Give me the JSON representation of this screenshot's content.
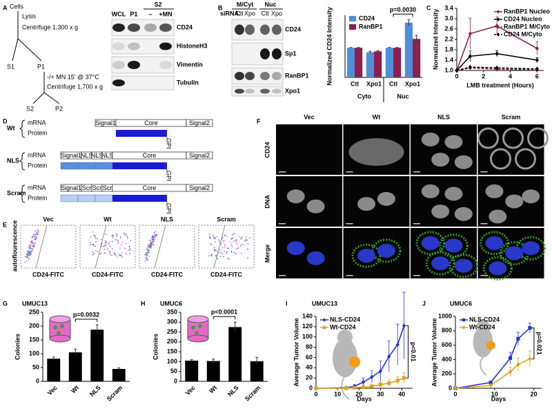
{
  "panel_labels": [
    "A",
    "B",
    "C",
    "D",
    "E",
    "F",
    "G",
    "H",
    "I",
    "J"
  ],
  "fractionation": {
    "nodes": [
      "Cells",
      "S1",
      "P1",
      "S2",
      "P2"
    ],
    "steps": [
      "Lysis",
      "Centrifuge 1,300 x g",
      "-/+ MN 15' @ 37°C",
      "Centrifuge 1,700 x g"
    ]
  },
  "blot_a": {
    "group": "S2",
    "lanes": [
      "WCL",
      "P1",
      "–",
      "+MN"
    ],
    "rows": [
      "CD24",
      "HistoneH3",
      "Vimentin",
      "Tubulin"
    ]
  },
  "blot_b": {
    "groups": [
      "M/Cyt",
      "Nuc"
    ],
    "sirna": "siRNA:",
    "lanes": [
      "Ctl",
      "Xpo",
      "Ctl",
      "Xpo"
    ],
    "rows": [
      "CD24",
      "Sp1",
      "RanBP1",
      "Xpo1"
    ]
  },
  "constructs": {
    "anchor": "GPI",
    "rows": [
      {
        "name": "Wt",
        "mrna": "mRNA",
        "protein": "Protein",
        "segments": [
          "Signal1",
          "Core",
          "Signal2"
        ]
      },
      {
        "name": "NLS",
        "mrna": "mRNA",
        "protein": "Protein",
        "segments": [
          "Signal1",
          "NLS",
          "NLS",
          "NLS",
          "Core",
          "Signal2"
        ]
      },
      {
        "name": "Scram",
        "mrna": "mRNA",
        "protein": "Protein",
        "segments": [
          "Signal1",
          "Scr",
          "Scr",
          "Scr",
          "Core",
          "Signal2"
        ]
      }
    ]
  },
  "flow": {
    "titles": [
      "Vec",
      "Wt",
      "NLS",
      "Scram"
    ],
    "y_label": "autoflourescence",
    "x_label": "CD24-FITC"
  },
  "imaging": {
    "columns": [
      "Vec",
      "Wt",
      "NLS",
      "Scram"
    ],
    "rows": [
      "CD24",
      "DNA",
      "Merge"
    ]
  },
  "chart_data": [
    {
      "type": "bar",
      "y_label": "Normalized CD24 Intensity",
      "categories": [
        "Ctl",
        "Xpo1",
        "Ctl",
        "Xpo1"
      ],
      "groups": [
        "Cyto",
        "Nuc"
      ],
      "series": [
        {
          "name": "CD24",
          "color": "#4f8fd6",
          "values": [
            1,
            0.85,
            1,
            1.85
          ],
          "errors": [
            0.01,
            0.03,
            0.01,
            0.1
          ]
        },
        {
          "name": "RanBP1",
          "color": "#8e1f4f",
          "values": [
            1,
            0.88,
            1,
            1.3
          ],
          "errors": [
            0.01,
            0.02,
            0.01,
            0.12
          ]
        }
      ],
      "ylim": [
        0,
        2.1
      ],
      "legend": "upper left",
      "annotation": "p=0.0030"
    },
    {
      "type": "line",
      "y_label": "Normalized Intensity",
      "x_label": "LMB treatment (Hours)",
      "x": [
        0,
        1,
        3,
        6
      ],
      "xlim": [
        0,
        6.5
      ],
      "xticks": [
        0,
        2,
        4,
        6
      ],
      "ylim": [
        1,
        3.4
      ],
      "yticks": [
        {
          "value": 1,
          "label": "1.0"
        },
        1.4,
        1.8,
        2.2,
        2.6,
        {
          "value": 3,
          "label": "3.0"
        },
        3.4
      ],
      "legend": "upper right",
      "series": [
        {
          "name": "RanBP1 Nucleo",
          "color": "#8e1f4f",
          "marker": "diamond",
          "values": [
            1,
            2.42,
            2.72,
            1.85
          ],
          "errors": [
            0,
            0.6,
            0.35,
            0.25
          ]
        },
        {
          "name": "CD24 Nucleo",
          "color": "#000000",
          "marker": "diamond",
          "values": [
            1,
            1.55,
            1.65,
            1.4
          ],
          "errors": [
            0,
            0.2,
            0.12,
            0.1
          ]
        },
        {
          "name": "RanBP1 M/Cyto",
          "color": "#8e1f4f",
          "marker": "diamond",
          "dash": true,
          "values": [
            1,
            1.1,
            1.05,
            1.02
          ]
        },
        {
          "name": "CD24 M/Cyto",
          "color": "#000000",
          "marker": "diamond",
          "dash": true,
          "values": [
            1,
            1.13,
            1.1,
            1.06
          ]
        }
      ]
    },
    {
      "type": "bar",
      "title": "UMUC13",
      "y_label": "Colonies",
      "categories": [
        "Vec",
        "Wt",
        "NLS",
        "Scram"
      ],
      "values": [
        82,
        105,
        187,
        45
      ],
      "errors": [
        6,
        12,
        18,
        4
      ],
      "color": "#000000",
      "ylim": [
        0,
        250
      ],
      "yticks": [
        0,
        50,
        100,
        150,
        200,
        250
      ],
      "annotation": "p=0.0032"
    },
    {
      "type": "bar",
      "title": "UMUC6",
      "y_label": "Colonies",
      "categories": [
        "Vec",
        "Wt",
        "NLS",
        "Scram"
      ],
      "values": [
        105,
        103,
        275,
        102
      ],
      "errors": [
        5,
        10,
        25,
        20
      ],
      "color": "#000000",
      "ylim": [
        0,
        350
      ],
      "yticks": [
        0,
        50,
        100,
        150,
        200,
        250,
        300,
        350
      ],
      "annotation": "p<0.0001"
    },
    {
      "type": "line",
      "title": "UMUC13",
      "y_label": "Average Tumor Volume",
      "x_label": "Days",
      "x": [
        0,
        14,
        18,
        22,
        26,
        30,
        34,
        38,
        41
      ],
      "xlim": [
        0,
        45
      ],
      "xticks": [
        0,
        10,
        20,
        30,
        40
      ],
      "ylim": [
        0,
        140
      ],
      "yticks": [
        0,
        20,
        40,
        60,
        80,
        100,
        120,
        140
      ],
      "legend": "upper left",
      "annotation": "p<0.01",
      "series": [
        {
          "name": "NLS-CD24",
          "color": "#2233dd",
          "marker": "diamond",
          "values": [
            0,
            1,
            4,
            12,
            22,
            33,
            62,
            85,
            122
          ],
          "errors": [
            0,
            1,
            3,
            8,
            12,
            20,
            30,
            40,
            65
          ]
        },
        {
          "name": "Wt-CD24",
          "color": "#e0a020",
          "marker": "square",
          "values": [
            0,
            0,
            1,
            2,
            4,
            7,
            10,
            15,
            20
          ],
          "errors": [
            0,
            0,
            1,
            2,
            3,
            5,
            6,
            8,
            10
          ]
        }
      ]
    },
    {
      "type": "line",
      "title": "UMUC6",
      "y_label": "Average Tumor Volume",
      "x_label": "Days",
      "x": [
        0,
        9,
        14,
        16,
        19
      ],
      "xlim": [
        0,
        22
      ],
      "xticks": [
        0,
        10,
        20
      ],
      "ylim": [
        0,
        1000
      ],
      "yticks": [
        0,
        200,
        400,
        600,
        800,
        1000
      ],
      "legend": "upper left",
      "annotation": "p=0.021",
      "series": [
        {
          "name": "NLS-CD24",
          "color": "#2233dd",
          "marker": "square",
          "values": [
            0,
            80,
            420,
            690,
            840
          ],
          "errors": [
            0,
            15,
            80,
            90,
            70
          ]
        },
        {
          "name": "Wt-CD24",
          "color": "#e0a020",
          "marker": "diamond",
          "values": [
            0,
            40,
            230,
            330,
            410
          ],
          "errors": [
            0,
            10,
            60,
            90,
            110
          ]
        }
      ]
    }
  ]
}
